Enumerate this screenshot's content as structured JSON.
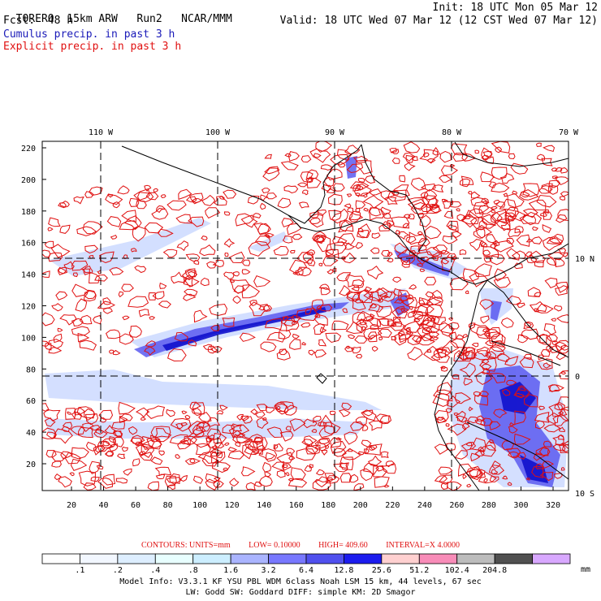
{
  "header": {
    "model": "TORERO  15km ARW",
    "run": "Run2",
    "org": "NCAR/MMM",
    "init": "Init: 18 UTC Mon 05 Mar 12",
    "fcst_label": "Fcst:",
    "fcst_hours": "48 h",
    "valid": "Valid: 18 UTC Wed 07 Mar 12 (12 CST Wed 07 Mar 12)",
    "field1": "Cumulus precip. in past 3 h",
    "field2": "Explicit precip. in past 3 h"
  },
  "map": {
    "lon_labels": [
      "110 W",
      "100 W",
      "90 W",
      "80 W",
      "70 W"
    ],
    "lat_labels": [
      "10 N",
      "0",
      "10 S"
    ],
    "y_ticks": [
      "220",
      "200",
      "180",
      "160",
      "140",
      "120",
      "100",
      "80",
      "60",
      "40",
      "20"
    ],
    "x_ticks": [
      "20",
      "40",
      "60",
      "80",
      "100",
      "120",
      "140",
      "160",
      "180",
      "200",
      "220",
      "240",
      "260",
      "280",
      "300",
      "320"
    ]
  },
  "contour_info": {
    "units": "CONTOURS:  UNITS=mm",
    "low": "LOW=  0.10000",
    "high": "HIGH=   409.60",
    "interval": "INTERVAL=X  4.0000"
  },
  "colorbar": {
    "labels": [
      ".1",
      ".2",
      ".4",
      ".8",
      "1.6",
      "3.2",
      "6.4",
      "12.8",
      "25.6",
      "51.2",
      "102.4",
      "204.8"
    ],
    "unit": "mm",
    "colors": [
      "#ffffff",
      "#f2f7ff",
      "#ddeeff",
      "#e8ffff",
      "#cceeff",
      "#aab4ff",
      "#7878ff",
      "#5050ee",
      "#1c1cee",
      "#ffd0d0",
      "#f88cb8",
      "#bcbcbc",
      "#505050",
      "#d8a8ff"
    ]
  },
  "footer": {
    "line1": "Model Info: V3.3.1    KF     YSU PBL   WDM 6class  Noah LSM  15 km,    44 levels,    67 sec",
    "line2": "LW: Godd SW: Goddard DIFF: simple KM: 2D Smagor"
  }
}
